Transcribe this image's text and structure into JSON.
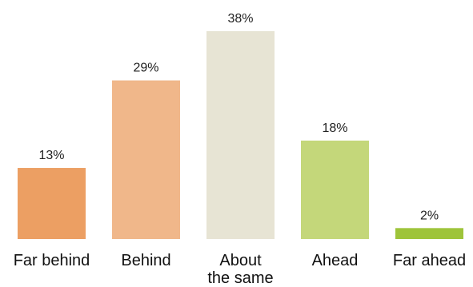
{
  "chart_data": {
    "type": "bar",
    "categories": [
      [
        "Far behind"
      ],
      [
        "Behind"
      ],
      [
        "About",
        "the same"
      ],
      [
        "Ahead"
      ],
      [
        "Far ahead"
      ]
    ],
    "values": [
      13,
      29,
      38,
      18,
      2
    ],
    "value_labels": [
      "13%",
      "29%",
      "38%",
      "18%",
      "2%"
    ],
    "colors": [
      "#EC9F63",
      "#F0B78A",
      "#E7E4D4",
      "#C4D77A",
      "#9EC43A"
    ],
    "ylim": [
      0,
      38
    ],
    "grid": false,
    "legend": "none"
  }
}
